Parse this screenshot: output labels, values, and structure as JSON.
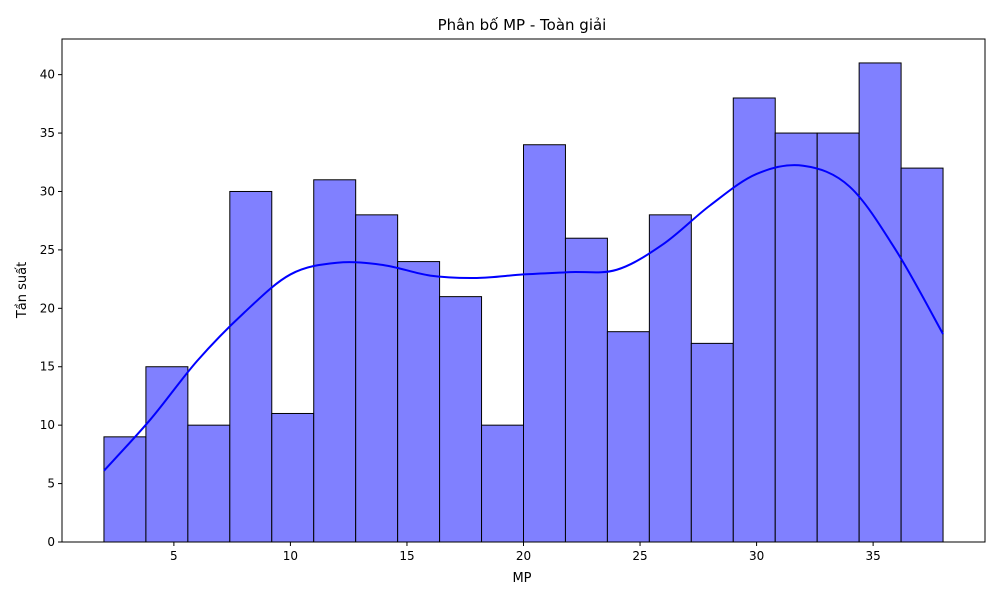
{
  "chart_data": {
    "type": "bar",
    "title": "Phân bố MP - Toàn giải",
    "xlabel": "MP",
    "ylabel": "Tần suất",
    "bin_edges": [
      2.0,
      3.8,
      5.6,
      7.4,
      9.2,
      11.0,
      12.8,
      14.6,
      16.4,
      18.2,
      20.0,
      21.8,
      23.6,
      25.4,
      27.2,
      29.0,
      30.8,
      32.6,
      34.4,
      36.2,
      38.0
    ],
    "values": [
      9,
      15,
      10,
      30,
      11,
      31,
      28,
      24,
      21,
      10,
      34,
      26,
      18,
      28,
      17,
      38,
      35,
      35,
      41,
      32
    ],
    "kde": {
      "x": [
        2,
        4,
        6,
        8,
        10,
        12,
        14,
        16,
        18,
        20,
        22,
        24,
        26,
        28,
        30,
        32,
        34,
        36,
        38
      ],
      "y": [
        6.1,
        10.5,
        15.5,
        19.6,
        22.9,
        23.9,
        23.7,
        22.8,
        22.6,
        22.9,
        23.1,
        23.3,
        25.5,
        28.8,
        31.5,
        32.2,
        30.4,
        24.9,
        17.8
      ]
    },
    "xlim": [
      0.2,
      39.8
    ],
    "ylim": [
      0,
      43.05
    ],
    "xticks": [
      5,
      10,
      15,
      20,
      25,
      30,
      35
    ],
    "yticks": [
      0,
      5,
      10,
      15,
      20,
      25,
      30,
      35,
      40
    ],
    "bar_color": "#8080ff",
    "bar_edge_color": "#000000",
    "kde_color": "#0000ff",
    "grid": false
  }
}
